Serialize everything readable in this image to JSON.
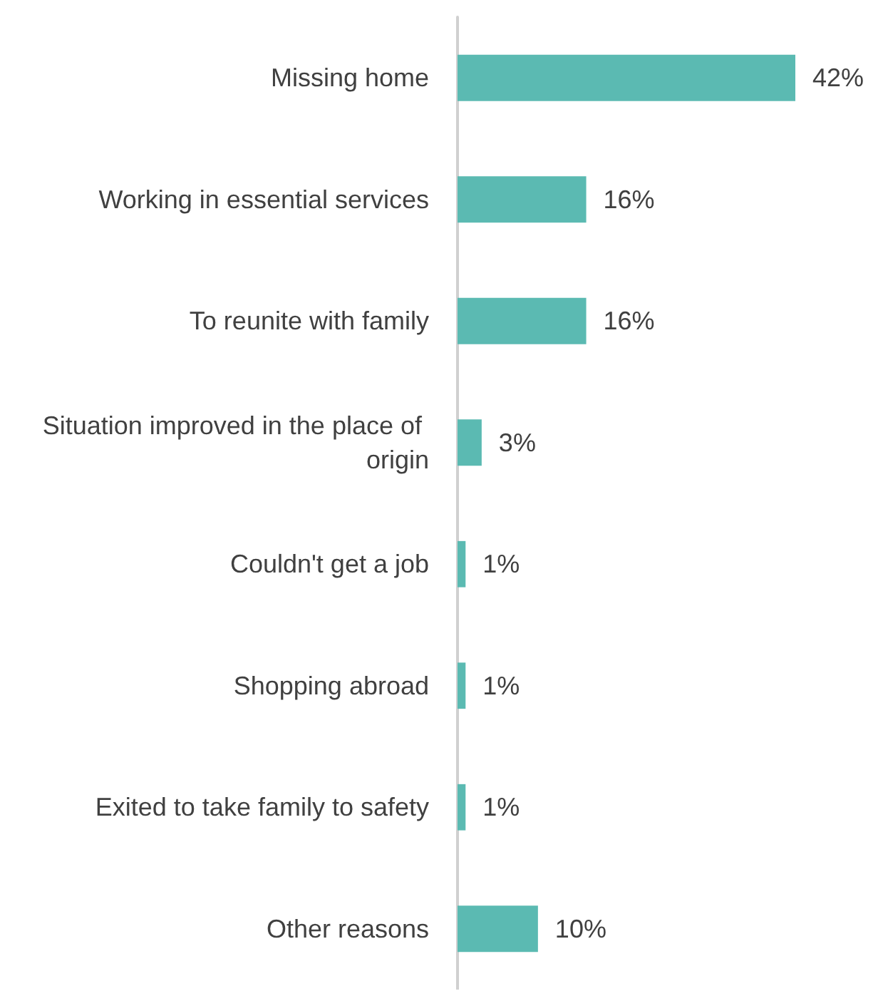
{
  "chart_data": {
    "type": "bar",
    "orientation": "horizontal",
    "categories": [
      "Missing home",
      "Working in essential services",
      "To reunite with family",
      "Situation improved in the place of origin",
      "Couldn't get a job",
      "Shopping abroad",
      "Exited to take family to safety",
      "Other reasons"
    ],
    "values": [
      42,
      16,
      16,
      3,
      1,
      1,
      1,
      10
    ],
    "value_labels": [
      "42%",
      "16%",
      "16%",
      "3%",
      "1%",
      "1%",
      "1%",
      "10%"
    ],
    "color": "#5bbab2"
  }
}
